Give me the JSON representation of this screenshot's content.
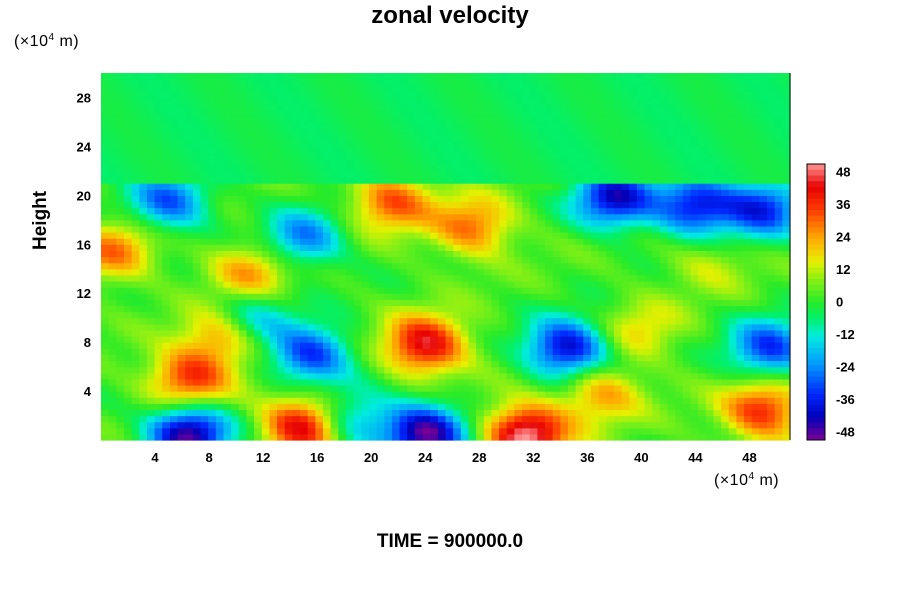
{
  "chart_data": {
    "type": "heatmap",
    "title": "zonal velocity",
    "ylabel": "Height",
    "x_unit": "(×10",
    "y_unit": "(×10",
    "unit_exp": "4",
    "unit_tail": " m)",
    "footer": "TIME = 900000.0",
    "xlim": [
      0,
      51
    ],
    "ylim": [
      0,
      30
    ],
    "x_ticks": [
      4,
      8,
      12,
      16,
      20,
      24,
      28,
      32,
      36,
      40,
      44,
      48
    ],
    "y_ticks": [
      4,
      8,
      12,
      16,
      20,
      24,
      28
    ],
    "colorbar": {
      "ticks": [
        48,
        36,
        24,
        12,
        0,
        -12,
        -24,
        -36,
        -48
      ],
      "range": [
        -48,
        48
      ]
    },
    "features": [
      {
        "x": 34.5,
        "y": 7.5,
        "value": -42
      },
      {
        "x": 15.5,
        "y": 7.0,
        "value": -34
      },
      {
        "x": 49.5,
        "y": 7.5,
        "value": -34
      },
      {
        "x": 24.0,
        "y": 7.8,
        "value": 40
      },
      {
        "x": 6.5,
        "y": 5.0,
        "value": 32
      },
      {
        "x": 6.5,
        "y": 0.6,
        "value": -48
      },
      {
        "x": 24.0,
        "y": 0.6,
        "value": -48
      },
      {
        "x": 15.0,
        "y": 1.2,
        "value": 42
      },
      {
        "x": 31.5,
        "y": 0.5,
        "value": 48
      },
      {
        "x": 49.0,
        "y": 2.5,
        "value": 34
      },
      {
        "x": 37.0,
        "y": 3.8,
        "value": 22
      },
      {
        "x": 27.5,
        "y": 17.5,
        "value": 26
      },
      {
        "x": 21.5,
        "y": 19.5,
        "value": 28
      },
      {
        "x": 1.0,
        "y": 15.5,
        "value": 24
      },
      {
        "x": 11.0,
        "y": 13.8,
        "value": 22
      },
      {
        "x": 18.5,
        "y": 1.5,
        "value": -22
      },
      {
        "x": 38.0,
        "y": 19.8,
        "value": -40
      },
      {
        "x": 44.0,
        "y": 19.2,
        "value": -38
      },
      {
        "x": 49.0,
        "y": 19.0,
        "value": -34
      },
      {
        "x": 5.0,
        "y": 19.5,
        "value": -30
      },
      {
        "x": 15.0,
        "y": 16.5,
        "value": -26
      },
      {
        "x": 40.0,
        "y": 9.0,
        "value": 14
      },
      {
        "x": 9.0,
        "y": 8.5,
        "value": 24
      },
      {
        "x": 45.0,
        "y": 14.5,
        "value": 10
      },
      {
        "x": 11.0,
        "y": 10.0,
        "value": -20
      }
    ]
  }
}
